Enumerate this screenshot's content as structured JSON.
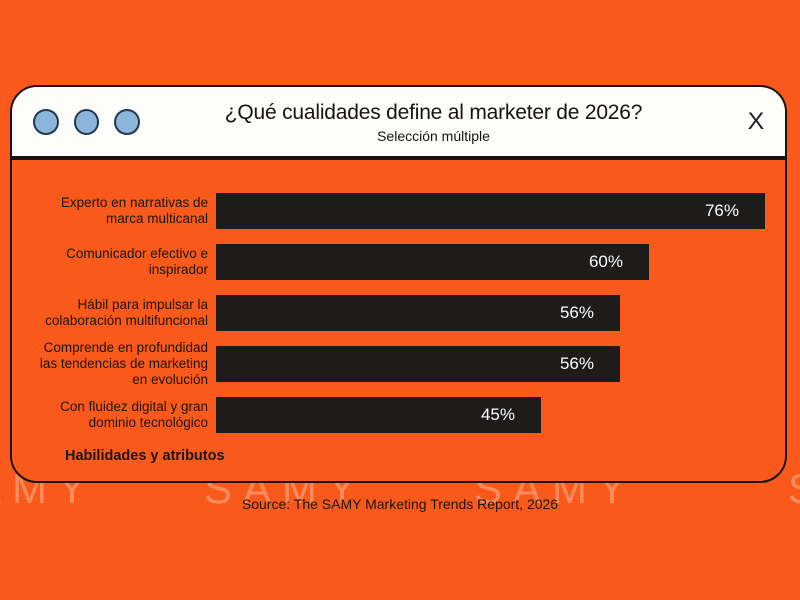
{
  "window": {
    "title": "¿Qué cualidades define al marketer de 2026?",
    "subtitle": "Selección múltiple",
    "close_icon": "X"
  },
  "chart_data": {
    "type": "bar",
    "orientation": "horizontal",
    "title": "¿Qué cualidades define al marketer de 2026?",
    "subtitle": "Selección múltiple",
    "categories": [
      "Experto en narrativas de\nmarca multicanal",
      "Comunicador efectivo e\ninspirador",
      "Hábil para impulsar la\ncolaboración multifuncional",
      "Comprende en profundidad\nlas tendencias de marketing\nen evolución",
      "Con fluidez digital y gran\ndominio tecnológico"
    ],
    "values": [
      76,
      60,
      56,
      56,
      45
    ],
    "unit": "%",
    "value_labels": [
      "76%",
      "60%",
      "56%",
      "56%",
      "45%"
    ],
    "xlabel": "Habilidades y atributos",
    "xlim": [
      0,
      100
    ],
    "grid": false,
    "legend": false,
    "bar_color": "#1E1B1B",
    "value_label_color": "#FDFDFD"
  },
  "source": "Source: The SAMY Marketing Trends Report, 2026",
  "watermark": {
    "text": "SAMY",
    "color": "#FB8A5C"
  },
  "colors": {
    "background": "#F95A1C",
    "window_header": "#FDFDFB",
    "border_ink": "#17130F",
    "dot_fill": "#8CB5DB",
    "dot_border": "#23374A"
  }
}
